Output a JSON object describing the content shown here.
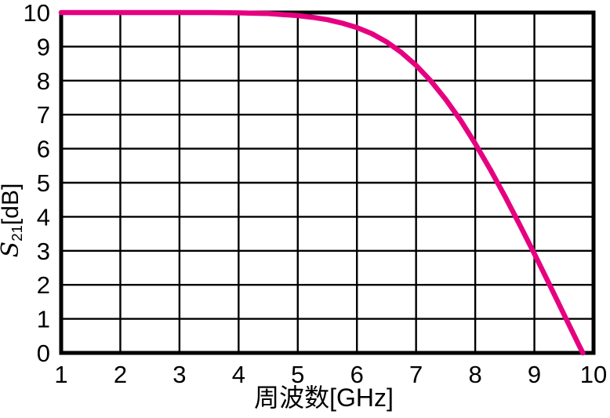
{
  "chart_data": {
    "type": "line",
    "title": "",
    "xlabel": "周波数[GHz]",
    "ylabel_symbol": "S",
    "ylabel_subscript": "21",
    "ylabel_unit": "[dB]",
    "xlim": [
      1,
      10
    ],
    "ylim": [
      0,
      10
    ],
    "x_ticks": [
      1,
      2,
      3,
      4,
      5,
      6,
      7,
      8,
      9,
      10
    ],
    "y_ticks": [
      0,
      1,
      2,
      3,
      4,
      5,
      6,
      7,
      8,
      9,
      10
    ],
    "grid": true,
    "legend": "none",
    "line_color": "#e60080",
    "axis_color": "#000000",
    "background": "#ffffff",
    "series": [
      {
        "name": "S21",
        "x": [
          1,
          1.5,
          2,
          2.5,
          3,
          3.5,
          4,
          4.25,
          4.5,
          4.75,
          5,
          5.25,
          5.5,
          5.75,
          6,
          6.25,
          6.5,
          6.75,
          7,
          7.25,
          7.5,
          7.75,
          8,
          8.25,
          8.5,
          8.75,
          9,
          9.25,
          9.5,
          9.75,
          9.82
        ],
        "y": [
          10,
          10,
          10,
          10,
          10,
          10,
          9.99,
          9.98,
          9.97,
          9.94,
          9.91,
          9.86,
          9.79,
          9.69,
          9.56,
          9.38,
          9.14,
          8.83,
          8.45,
          7.99,
          7.45,
          6.84,
          6.15,
          5.4,
          4.61,
          3.77,
          2.91,
          2.03,
          1.13,
          0.24,
          0
        ]
      }
    ]
  }
}
